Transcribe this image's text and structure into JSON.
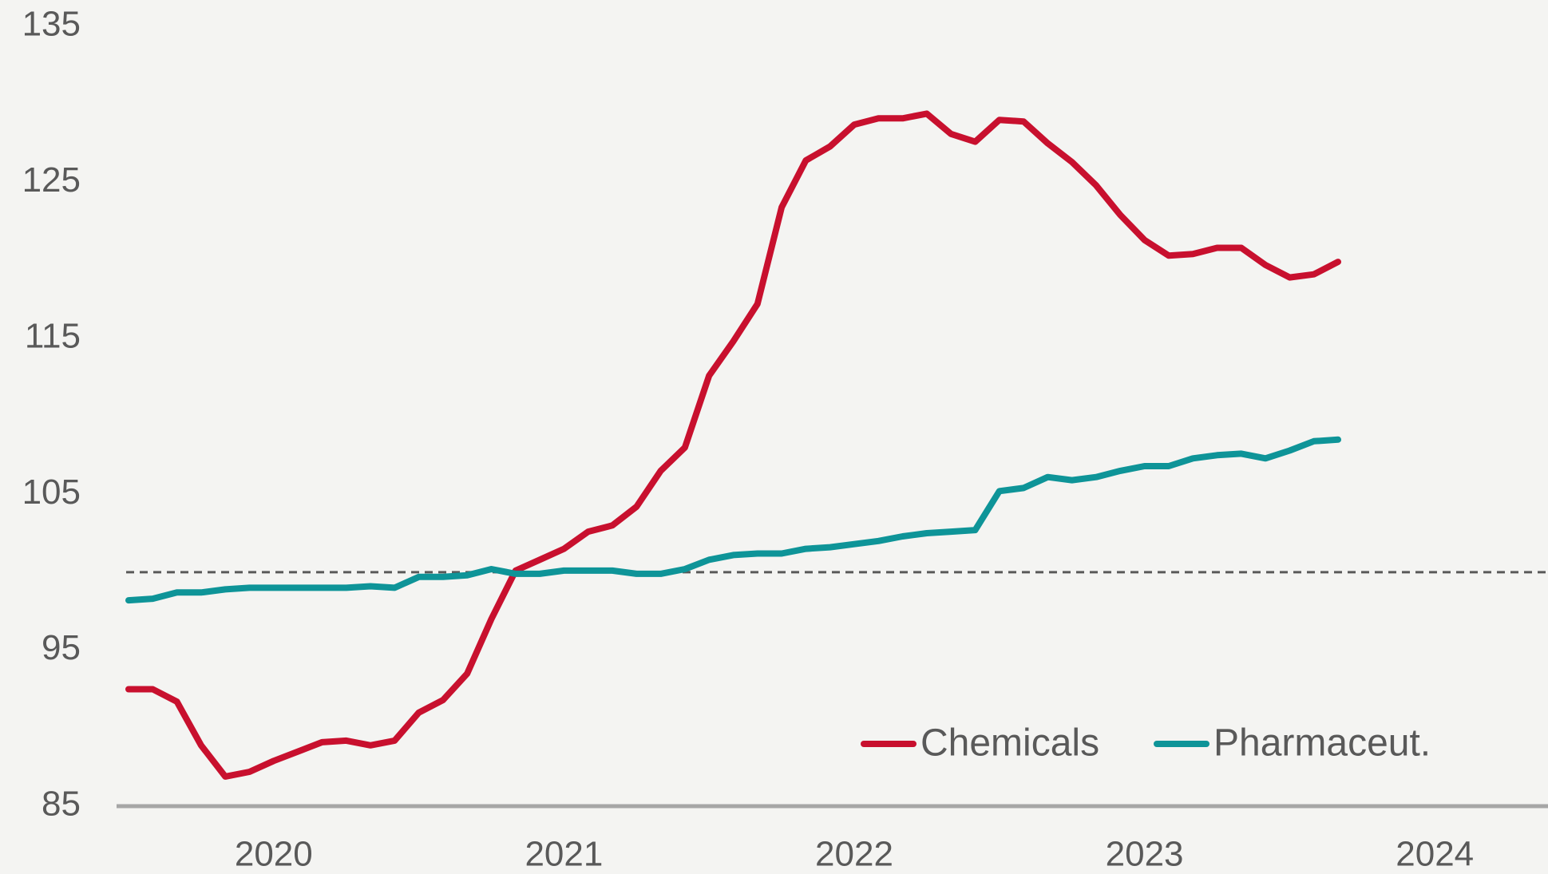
{
  "chart_data": {
    "type": "line",
    "categories": [
      null,
      null,
      null,
      null,
      null,
      null,
      "2020",
      null,
      null,
      null,
      null,
      null,
      null,
      null,
      null,
      null,
      null,
      null,
      "2021",
      null,
      null,
      null,
      null,
      null,
      null,
      null,
      null,
      null,
      null,
      null,
      "2022",
      null,
      null,
      null,
      null,
      null,
      null,
      null,
      null,
      null,
      null,
      null,
      "2023",
      null,
      null,
      null,
      null,
      null,
      null,
      null,
      null,
      null,
      null,
      null,
      "2024",
      null,
      null,
      null,
      null
    ],
    "series": [
      {
        "name": "Chemicals",
        "color": "#c8102e",
        "values": [
          92.5,
          92.5,
          91.7,
          88.9,
          86.9,
          87.2,
          87.9,
          88.5,
          89.1,
          89.2,
          88.9,
          89.2,
          91.0,
          91.8,
          93.5,
          97.0,
          100.1,
          100.8,
          101.5,
          102.6,
          103.0,
          104.2,
          106.5,
          108.0,
          112.6,
          114.8,
          117.2,
          123.4,
          126.4,
          127.3,
          128.7,
          129.1,
          129.1,
          129.4,
          128.1,
          127.6,
          129.0,
          128.9,
          127.5,
          126.3,
          124.8,
          122.9,
          121.3,
          120.3,
          120.4,
          120.8,
          120.8,
          119.7,
          118.9,
          119.1,
          119.9,
          null,
          null,
          null,
          null,
          null,
          null,
          null,
          null
        ]
      },
      {
        "name": "Pharmaceut.",
        "color": "#0e9498",
        "values": [
          98.2,
          98.3,
          98.7,
          98.7,
          98.9,
          99.0,
          99.0,
          99.0,
          99.0,
          99.0,
          99.1,
          99.0,
          99.7,
          99.7,
          99.8,
          100.2,
          99.9,
          99.9,
          100.1,
          100.1,
          100.1,
          99.9,
          99.9,
          100.2,
          100.8,
          101.1,
          101.2,
          101.2,
          101.5,
          101.6,
          101.8,
          102.0,
          102.3,
          102.5,
          102.6,
          102.7,
          105.2,
          105.4,
          106.1,
          105.9,
          106.1,
          106.5,
          106.8,
          106.8,
          107.3,
          107.5,
          107.6,
          107.3,
          107.8,
          108.4,
          108.5,
          null,
          null,
          null,
          null,
          null,
          null,
          null,
          null
        ]
      }
    ],
    "ylim": [
      85,
      135
    ],
    "yticks": [
      85,
      95,
      105,
      115,
      125,
      135
    ],
    "reference_line": 100,
    "reference_color": "#595959",
    "axis_color": "#a6a6a6",
    "legend": "lower right",
    "grid": false
  }
}
